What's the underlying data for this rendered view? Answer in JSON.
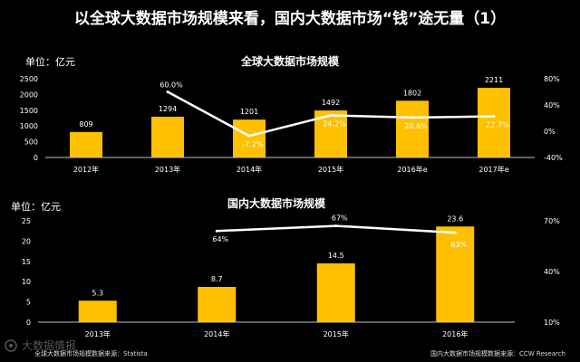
{
  "page": {
    "title": "以全球大数据市场规模来看，国内大数据市场“钱”途无量（1）",
    "source_left": "全球大数据市场规模数据来源：Statista",
    "source_right": "国内大数据市场规模数据来源：CCW Research",
    "watermark": "大数据情报"
  },
  "colors": {
    "bar": "#FFC000",
    "line": "#FFFFFF",
    "background": "#000000",
    "axis": "#BFBFBF"
  },
  "chart_data": [
    {
      "type": "bar",
      "title": "全球大数据市场规模",
      "unit_label": "单位：亿元",
      "categories": [
        "2012年",
        "2013年",
        "2014年",
        "2015年",
        "2016年e",
        "2017年e"
      ],
      "values": [
        809,
        1294,
        1201,
        1492,
        1802,
        2211
      ],
      "value_labels": [
        "809",
        "1294",
        "1201",
        "1492",
        "1802",
        "2211"
      ],
      "ylim": [
        0,
        2500
      ],
      "yticks": [
        "0",
        "500",
        "1000",
        "1500",
        "2000",
        "2500"
      ],
      "line_series": {
        "axis": "right",
        "categories": [
          "2013年",
          "2014年",
          "2015年",
          "2016年e",
          "2017年e"
        ],
        "values": [
          60.0,
          -7.2,
          24.2,
          20.8,
          22.7
        ],
        "value_labels": [
          "60.0%",
          "-7.2%",
          "24.2%",
          "20.8%",
          "22.7%"
        ]
      },
      "y2lim": [
        -40,
        80
      ],
      "y2ticks": [
        "-40%",
        "0%",
        "40%",
        "80%"
      ]
    },
    {
      "type": "bar",
      "title": "国内大数据市场规模",
      "unit_label": "单位：亿元",
      "categories": [
        "2013年",
        "2014年",
        "2015年",
        "2016年"
      ],
      "values": [
        5.3,
        8.7,
        14.5,
        23.6
      ],
      "value_labels": [
        "5.3",
        "8.7",
        "14.5",
        "23.6"
      ],
      "ylim": [
        0,
        25
      ],
      "yticks": [
        "0",
        "5",
        "10",
        "15",
        "20",
        "25"
      ],
      "line_series": {
        "axis": "right",
        "categories": [
          "2014年",
          "2015年",
          "2016年"
        ],
        "values": [
          64,
          67,
          63
        ],
        "value_labels": [
          "64%",
          "67%",
          "63%"
        ]
      },
      "y2lim": [
        10,
        70
      ],
      "y2ticks": [
        "10%",
        "40%",
        "70%"
      ]
    }
  ]
}
